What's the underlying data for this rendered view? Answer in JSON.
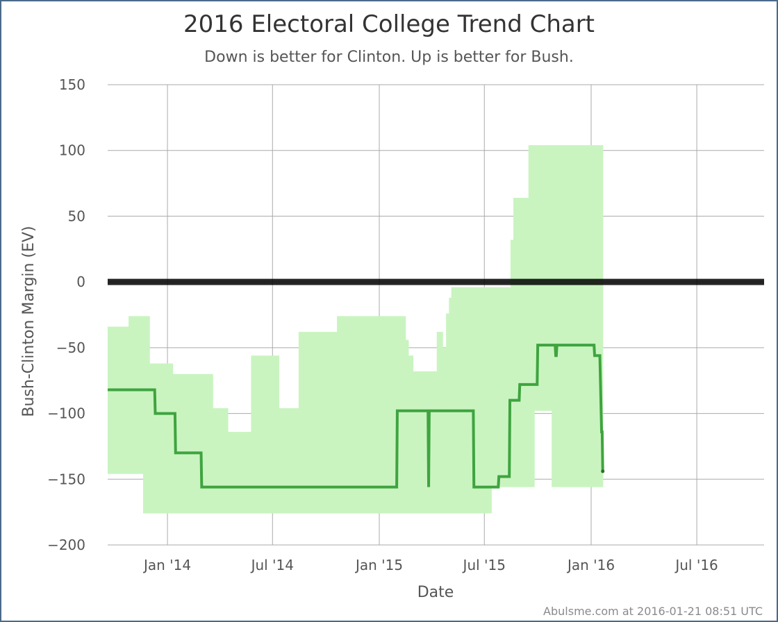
{
  "chart_data": {
    "type": "line",
    "title": "2016 Electoral College Trend Chart",
    "subtitle": "Down is better for Clinton. Up is better for Bush.",
    "xlabel": "Date",
    "ylabel": "Bush-Clinton Margin (EV)",
    "credit": "Abulsme.com at 2016-01-21 08:51 UTC",
    "xlim": [
      "2013-09-20",
      "2016-10-25"
    ],
    "ylim": [
      -200,
      150
    ],
    "yticks": [
      150,
      100,
      50,
      0,
      -50,
      -100,
      -150,
      -200
    ],
    "xticks": [
      {
        "date": "2014-01-01",
        "label": "Jan '14"
      },
      {
        "date": "2014-07-01",
        "label": "Jul '14"
      },
      {
        "date": "2015-01-01",
        "label": "Jan '15"
      },
      {
        "date": "2015-07-01",
        "label": "Jul '15"
      },
      {
        "date": "2016-01-01",
        "label": "Jan '16"
      },
      {
        "date": "2016-07-01",
        "label": "Jul '16"
      }
    ],
    "grid": true,
    "reference_line": 0,
    "colors": {
      "line": "#3fa43f",
      "band": "#c9f4c0",
      "zero": "#000000",
      "grid": "#aaaaaa"
    },
    "band": [
      {
        "date": "2013-09-20",
        "low": -146,
        "high": -34
      },
      {
        "date": "2013-10-26",
        "low": -146,
        "high": -26
      },
      {
        "date": "2013-11-20",
        "low": -176,
        "high": -26
      },
      {
        "date": "2013-12-01",
        "low": -176,
        "high": -62
      },
      {
        "date": "2014-01-10",
        "low": -176,
        "high": -70
      },
      {
        "date": "2014-03-20",
        "low": -176,
        "high": -96
      },
      {
        "date": "2014-04-15",
        "low": -176,
        "high": -114
      },
      {
        "date": "2014-05-25",
        "low": -176,
        "high": -56
      },
      {
        "date": "2014-07-12",
        "low": -176,
        "high": -96
      },
      {
        "date": "2014-08-15",
        "low": -176,
        "high": -38
      },
      {
        "date": "2014-10-20",
        "low": -176,
        "high": -26
      },
      {
        "date": "2015-02-15",
        "low": -176,
        "high": -44
      },
      {
        "date": "2015-02-20",
        "low": -176,
        "high": -56
      },
      {
        "date": "2015-02-28",
        "low": -176,
        "high": -68
      },
      {
        "date": "2015-04-10",
        "low": -176,
        "high": -38
      },
      {
        "date": "2015-04-20",
        "low": -176,
        "high": -50
      },
      {
        "date": "2015-04-26",
        "low": -176,
        "high": -24
      },
      {
        "date": "2015-05-01",
        "low": -176,
        "high": -12
      },
      {
        "date": "2015-05-05",
        "low": -176,
        "high": -4
      },
      {
        "date": "2015-07-13",
        "low": -156,
        "high": -4
      },
      {
        "date": "2015-08-15",
        "low": -156,
        "high": 32
      },
      {
        "date": "2015-08-20",
        "low": -156,
        "high": 64
      },
      {
        "date": "2015-09-15",
        "low": -156,
        "high": 104
      },
      {
        "date": "2015-09-25",
        "low": -98,
        "high": 104
      },
      {
        "date": "2015-10-25",
        "low": -156,
        "high": 104
      },
      {
        "date": "2016-01-21",
        "low": -156,
        "high": 104
      }
    ],
    "series": [
      {
        "values": [
          {
            "date": "2013-09-20",
            "value": -82
          },
          {
            "date": "2013-12-10",
            "value": -82
          },
          {
            "date": "2013-12-11",
            "value": -100
          },
          {
            "date": "2014-01-14",
            "value": -100
          },
          {
            "date": "2014-01-15",
            "value": -130
          },
          {
            "date": "2014-02-28",
            "value": -130
          },
          {
            "date": "2014-03-01",
            "value": -156
          },
          {
            "date": "2015-01-31",
            "value": -156
          },
          {
            "date": "2015-02-01",
            "value": -98
          },
          {
            "date": "2015-03-26",
            "value": -98
          },
          {
            "date": "2015-03-27",
            "value": -156
          },
          {
            "date": "2015-03-28",
            "value": -98
          },
          {
            "date": "2015-06-12",
            "value": -98
          },
          {
            "date": "2015-06-13",
            "value": -156
          },
          {
            "date": "2015-07-25",
            "value": -156
          },
          {
            "date": "2015-07-26",
            "value": -148
          },
          {
            "date": "2015-08-13",
            "value": -148
          },
          {
            "date": "2015-08-14",
            "value": -90
          },
          {
            "date": "2015-08-30",
            "value": -90
          },
          {
            "date": "2015-08-31",
            "value": -78
          },
          {
            "date": "2015-09-30",
            "value": -78
          },
          {
            "date": "2015-10-01",
            "value": -48
          },
          {
            "date": "2015-10-31",
            "value": -48
          },
          {
            "date": "2015-11-01",
            "value": -56
          },
          {
            "date": "2015-11-02",
            "value": -56
          },
          {
            "date": "2015-11-03",
            "value": -48
          },
          {
            "date": "2016-01-06",
            "value": -48
          },
          {
            "date": "2016-01-07",
            "value": -56
          },
          {
            "date": "2016-01-16",
            "value": -56
          },
          {
            "date": "2016-01-19",
            "value": -114
          },
          {
            "date": "2016-01-20",
            "value": -114
          },
          {
            "date": "2016-01-21",
            "value": -144
          }
        ]
      }
    ]
  }
}
